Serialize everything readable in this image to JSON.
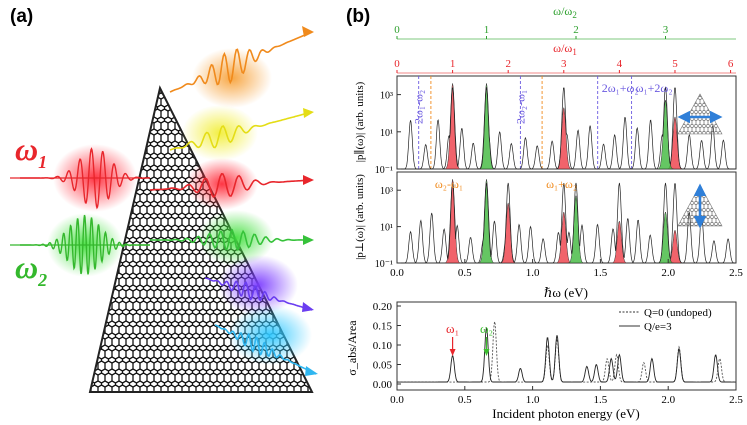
{
  "panel_a": {
    "label": "(a)",
    "omega1": {
      "symbol": "ω",
      "sub": "1",
      "color": "#e8262c"
    },
    "omega2": {
      "symbol": "ω",
      "sub": "2",
      "color": "#3bbf2e"
    },
    "beam_colors": [
      "#f08a1c",
      "#e9e31e",
      "#e8262c",
      "#36c23a",
      "#6a3df0",
      "#2fb6f0"
    ]
  },
  "panel_b": {
    "label": "(b)",
    "top_axis_green": {
      "label_html": "ω/ω",
      "sub": "2",
      "ticks": [
        "0",
        "1",
        "2",
        "3"
      ],
      "ticks_at": [
        0,
        1,
        2,
        3
      ],
      "color": "#2ea02e"
    },
    "top_axis_red": {
      "label_html": "ω/ω",
      "sub": "1",
      "ticks": [
        "0",
        "1",
        "2",
        "3",
        "4",
        "5",
        "6"
      ],
      "ticks_at": [
        0,
        1,
        2,
        3,
        4,
        5,
        6
      ],
      "color": "#e8262c"
    },
    "omega1_eV": 0.41,
    "omega2_eV": 0.66
  },
  "chart_data": [
    {
      "type": "line",
      "title": "",
      "ylabel": "|p∥(ω)| (arb. units)",
      "xlim": [
        0,
        2.5
      ],
      "ylog": true,
      "yticks": [
        "10³",
        "10¹",
        "10⁻¹"
      ],
      "annotations": [
        {
          "text": "2ω₁-ω₂",
          "x": 0.16,
          "color": "#6b5ae0"
        },
        {
          "text": "2ω₂-ω₁",
          "x": 0.91,
          "color": "#6b5ae0"
        },
        {
          "text": "2ω₁+ω₂",
          "x": 1.48,
          "color": "#6b5ae0"
        },
        {
          "text": "ω₁+2ω₂",
          "x": 1.73,
          "color": "#6b5ae0"
        }
      ],
      "dashed_lines": [
        {
          "x": 0.16,
          "color": "#6b5ae0"
        },
        {
          "x": 0.25,
          "color": "#f08a1c"
        },
        {
          "x": 0.91,
          "color": "#6b5ae0"
        },
        {
          "x": 1.07,
          "color": "#f08a1c"
        },
        {
          "x": 1.48,
          "color": "#6b5ae0"
        },
        {
          "x": 1.73,
          "color": "#6b5ae0"
        }
      ],
      "red_peaks_x": [
        0.41,
        1.23,
        2.05
      ],
      "green_peaks_x": [
        0.66,
        1.98
      ],
      "labels": {
        "pol_icon": "horizontal-polarization"
      }
    },
    {
      "type": "line",
      "ylabel": "|p⊥(ω)| (arb. units)",
      "xlabel": "ℏω (eV)",
      "xlim": [
        0,
        2.5
      ],
      "xticks": [
        "0.0",
        "0.5",
        "1.0",
        "1.5",
        "2.0",
        "2.5"
      ],
      "ylog": true,
      "yticks": [
        "10³",
        "10¹",
        "10⁻¹"
      ],
      "annotations": [
        {
          "text": "ω₂-ω₁",
          "x": 0.25,
          "color": "#f08a1c"
        },
        {
          "text": "ω₁+ω₂",
          "x": 1.07,
          "color": "#f08a1c"
        }
      ],
      "red_peaks_x": [
        0.41,
        0.82,
        1.23,
        1.64,
        2.05
      ],
      "green_peaks_x": [
        0.66,
        1.32,
        1.98
      ],
      "labels": {
        "pol_icon": "vertical-polarization"
      }
    },
    {
      "type": "line",
      "xlabel": "Incident photon energy (eV)",
      "ylabel": "σ_abs/Area",
      "xlim": [
        0,
        2.5
      ],
      "ylim": [
        0,
        0.2
      ],
      "xticks": [
        "0.0",
        "0.5",
        "1.0",
        "1.5",
        "2.0",
        "2.5"
      ],
      "yticks": [
        "0.20",
        "0.15",
        "0.10",
        "0.05",
        "0.00"
      ],
      "arrows": [
        {
          "text": "ω₁",
          "x": 0.41,
          "color": "#e8262c"
        },
        {
          "text": "ω₂",
          "x": 0.66,
          "color": "#3bbf2e"
        }
      ],
      "series": [
        {
          "name": "Q=0 (undoped)",
          "style": "dotted",
          "peaks": [
            [
              0.72,
              0.155
            ],
            [
              1.11,
              0.095
            ],
            [
              1.18,
              0.11
            ],
            [
              1.55,
              0.06
            ],
            [
              1.62,
              0.07
            ],
            [
              1.82,
              0.05
            ],
            [
              2.08,
              0.09
            ],
            [
              2.38,
              0.06
            ]
          ]
        },
        {
          "name": "Q/e=3",
          "style": "solid",
          "peaks": [
            [
              0.41,
              0.068
            ],
            [
              0.66,
              0.14
            ],
            [
              0.91,
              0.035
            ],
            [
              1.11,
              0.115
            ],
            [
              1.18,
              0.12
            ],
            [
              1.4,
              0.04
            ],
            [
              1.47,
              0.045
            ],
            [
              1.58,
              0.06
            ],
            [
              1.64,
              0.07
            ],
            [
              1.88,
              0.06
            ],
            [
              2.08,
              0.085
            ],
            [
              2.35,
              0.07
            ]
          ]
        }
      ],
      "legend": [
        "Q=0 (undoped)",
        "Q/e=3"
      ]
    }
  ]
}
